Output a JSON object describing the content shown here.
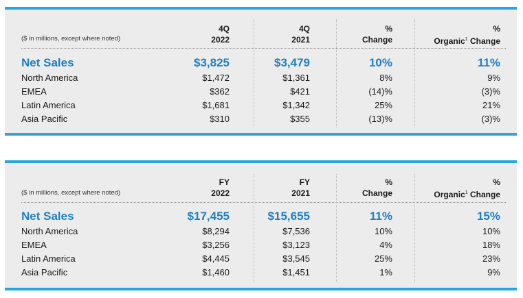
{
  "quarter_table": {
    "note": "($ in millions, except where noted)",
    "columns": [
      {
        "line1": "4Q",
        "line2": "2022"
      },
      {
        "line1": "4Q",
        "line2": "2021"
      },
      {
        "line1": "%",
        "line2": "Change"
      },
      {
        "line1": "%",
        "line2_pre": "Organic",
        "sup": "1",
        "line2_post": " Change"
      }
    ],
    "rows": [
      {
        "label": "Net Sales",
        "values": [
          "$3,825",
          "$3,479",
          "10%",
          "11%"
        ]
      },
      {
        "label": "North America",
        "values": [
          "$1,472",
          "$1,361",
          "8%",
          "9%"
        ]
      },
      {
        "label": "EMEA",
        "values": [
          "$362",
          "$421",
          "(14)%",
          "(3)%"
        ]
      },
      {
        "label": "Latin America",
        "values": [
          "$1,681",
          "$1,342",
          "25%",
          "21%"
        ]
      },
      {
        "label": "Asia Pacific",
        "values": [
          "$310",
          "$355",
          "(13)%",
          "(3)%"
        ]
      }
    ]
  },
  "fy_table": {
    "note": "($ in millions, except where noted)",
    "columns": [
      {
        "line1": "FY",
        "line2": "2022"
      },
      {
        "line1": "FY",
        "line2": "2021"
      },
      {
        "line1": "%",
        "line2": "Change"
      },
      {
        "line1": "%",
        "line2_pre": "Organic",
        "sup": "1",
        "line2_post": " Change"
      }
    ],
    "rows": [
      {
        "label": "Net Sales",
        "values": [
          "$17,455",
          "$15,655",
          "11%",
          "15%"
        ]
      },
      {
        "label": "North America",
        "values": [
          "$8,294",
          "$7,536",
          "10%",
          "10%"
        ]
      },
      {
        "label": "EMEA",
        "values": [
          "$3,256",
          "$3,123",
          "4%",
          "18%"
        ]
      },
      {
        "label": "Latin America",
        "values": [
          "$4,445",
          "$3,545",
          "25%",
          "23%"
        ]
      },
      {
        "label": "Asia Pacific",
        "values": [
          "$1,460",
          "$1,451",
          "1%",
          "9%"
        ]
      }
    ]
  },
  "colors": {
    "accent": "#29a6d9",
    "highlight_text": "#1f7fc4",
    "panel_bg": "#ececec"
  }
}
